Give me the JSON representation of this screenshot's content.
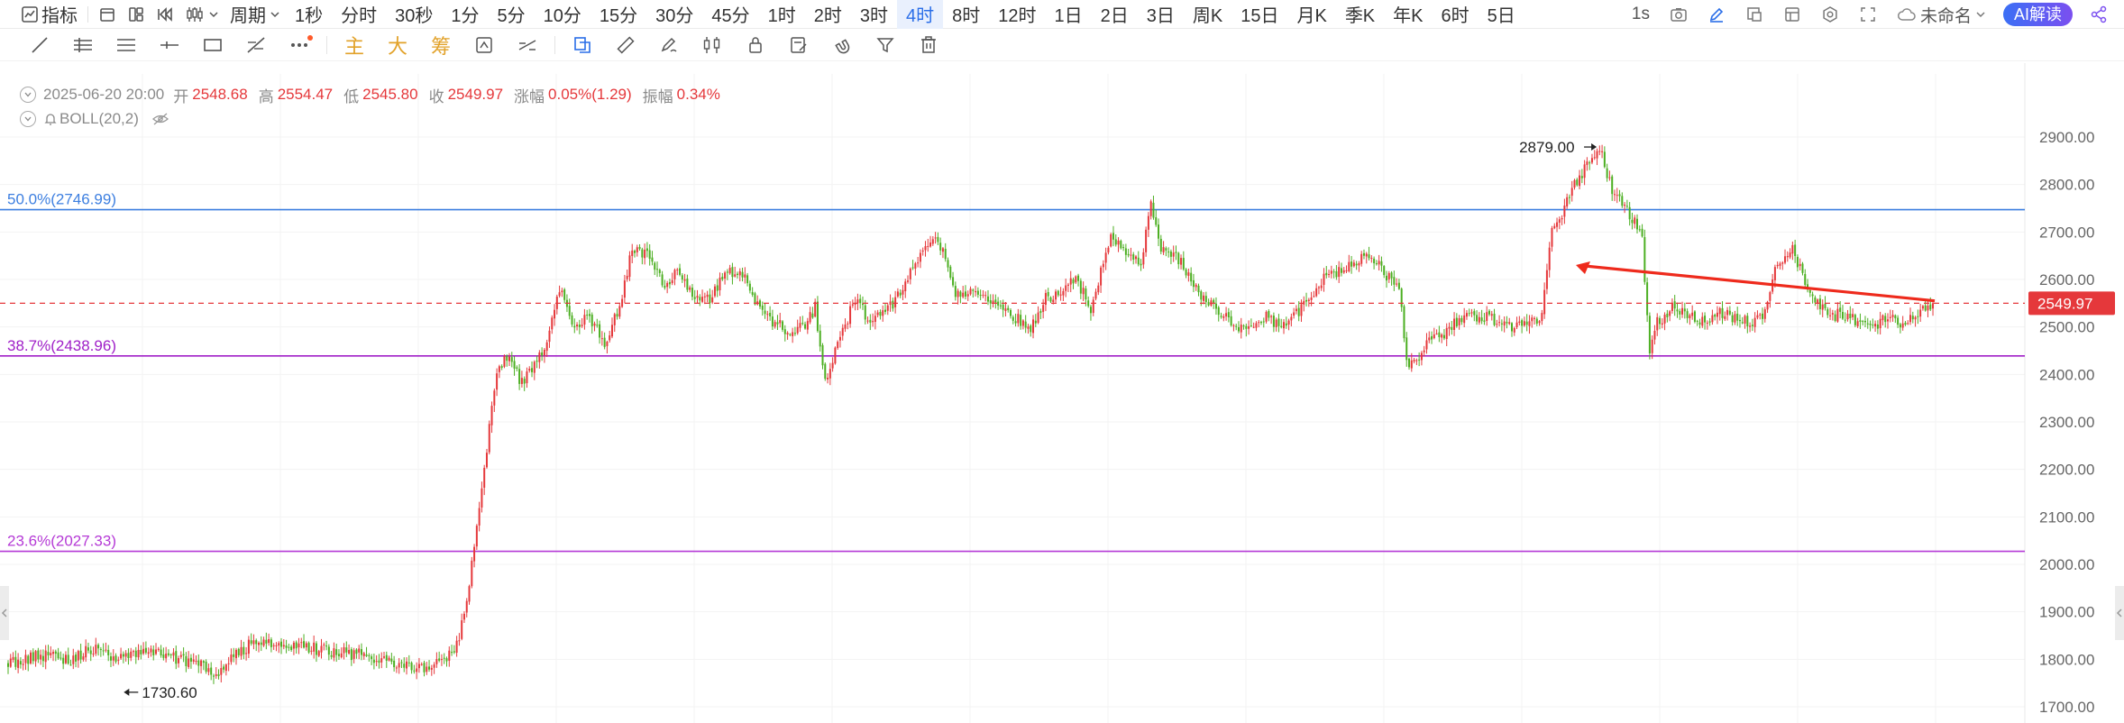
{
  "toolbar": {
    "indicator_label": "指标",
    "period_label": "周期",
    "periods": [
      "1秒",
      "分时",
      "30秒",
      "1分",
      "5分",
      "10分",
      "15分",
      "30分",
      "45分",
      "1时",
      "2时",
      "3时",
      "4时",
      "8时",
      "12时",
      "1日",
      "2日",
      "3日",
      "周K",
      "15日",
      "月K",
      "季K",
      "年K",
      "6时",
      "5日"
    ],
    "active_period": "4时",
    "refresh_label": "1s",
    "layout_name": "未命名",
    "ai_label": "AI解读"
  },
  "drawing_tools": {
    "main_label": "主",
    "big_label": "大",
    "chip_label": "筹"
  },
  "ohlc": {
    "datetime": "2025-06-20 20:00",
    "open_label": "开",
    "open": "2548.68",
    "high_label": "高",
    "high": "2554.47",
    "low_label": "低",
    "low": "2545.80",
    "close_label": "收",
    "close": "2549.97",
    "change_label": "涨幅",
    "change": "0.05%(1.29)",
    "amplitude_label": "振幅",
    "amplitude": "0.34%"
  },
  "indicator": {
    "label": "BOLL(20,2)"
  },
  "colors": {
    "up": "#e5383b",
    "down": "#4caf22",
    "fib50": "#3d7fe0",
    "fib38": "#a020c8",
    "fib23": "#b53ad6",
    "price_line": "#e5383b",
    "accent": "#2a6ee8"
  },
  "chart_data": {
    "type": "candlestick",
    "yaxis_ticks": [
      "2900.00",
      "2800.00",
      "2700.00",
      "2600.00",
      "2500.00",
      "2400.00",
      "2300.00",
      "2200.00",
      "2100.00",
      "2000.00",
      "1900.00",
      "1800.00",
      "1700.00"
    ],
    "ylim": [
      1690,
      2960
    ],
    "current_price": "2549.97",
    "fib_lines": [
      {
        "label": "50.0%(2746.99)",
        "value": 2746.99,
        "color": "#3d7fe0"
      },
      {
        "label": "38.7%(2438.96)",
        "value": 2438.96,
        "color": "#a020c8"
      },
      {
        "label": "23.6%(2027.33)",
        "value": 2027.33,
        "color": "#b53ad6"
      }
    ],
    "high_marker": {
      "label": "2879.00",
      "value": 2879.0
    },
    "low_marker": {
      "label": "1730.60",
      "value": 1730.6
    },
    "anchors": [
      [
        0,
        1790
      ],
      [
        15,
        1810
      ],
      [
        25,
        1800
      ],
      [
        35,
        1825
      ],
      [
        45,
        1800
      ],
      [
        55,
        1815
      ],
      [
        65,
        1805
      ],
      [
        75,
        1790
      ],
      [
        83,
        1770
      ],
      [
        90,
        1810
      ],
      [
        98,
        1835
      ],
      [
        108,
        1835
      ],
      [
        120,
        1825
      ],
      [
        130,
        1815
      ],
      [
        140,
        1810
      ],
      [
        150,
        1800
      ],
      [
        158,
        1790
      ],
      [
        165,
        1780
      ],
      [
        172,
        1800
      ],
      [
        178,
        1810
      ],
      [
        181,
        1870
      ],
      [
        184,
        1960
      ],
      [
        187,
        2080
      ],
      [
        190,
        2200
      ],
      [
        193,
        2330
      ],
      [
        196,
        2420
      ],
      [
        200,
        2440
      ],
      [
        205,
        2380
      ],
      [
        210,
        2420
      ],
      [
        214,
        2460
      ],
      [
        220,
        2580
      ],
      [
        226,
        2500
      ],
      [
        232,
        2520
      ],
      [
        238,
        2470
      ],
      [
        244,
        2540
      ],
      [
        249,
        2670
      ],
      [
        255,
        2650
      ],
      [
        262,
        2590
      ],
      [
        268,
        2620
      ],
      [
        274,
        2555
      ],
      [
        280,
        2560
      ],
      [
        287,
        2620
      ],
      [
        294,
        2600
      ],
      [
        300,
        2530
      ],
      [
        306,
        2510
      ],
      [
        312,
        2490
      ],
      [
        318,
        2500
      ],
      [
        322,
        2540
      ],
      [
        326,
        2390
      ],
      [
        332,
        2480
      ],
      [
        338,
        2560
      ],
      [
        344,
        2510
      ],
      [
        350,
        2530
      ],
      [
        356,
        2570
      ],
      [
        362,
        2630
      ],
      [
        368,
        2690
      ],
      [
        373,
        2670
      ],
      [
        378,
        2570
      ],
      [
        384,
        2570
      ],
      [
        390,
        2560
      ],
      [
        396,
        2545
      ],
      [
        402,
        2520
      ],
      [
        408,
        2500
      ],
      [
        414,
        2560
      ],
      [
        420,
        2570
      ],
      [
        426,
        2600
      ],
      [
        432,
        2540
      ],
      [
        440,
        2690
      ],
      [
        446,
        2660
      ],
      [
        452,
        2640
      ],
      [
        456,
        2760
      ],
      [
        460,
        2660
      ],
      [
        466,
        2650
      ],
      [
        472,
        2600
      ],
      [
        478,
        2550
      ],
      [
        484,
        2530
      ],
      [
        490,
        2500
      ],
      [
        496,
        2510
      ],
      [
        502,
        2520
      ],
      [
        508,
        2500
      ],
      [
        514,
        2530
      ],
      [
        520,
        2560
      ],
      [
        526,
        2610
      ],
      [
        532,
        2620
      ],
      [
        538,
        2640
      ],
      [
        544,
        2650
      ],
      [
        550,
        2610
      ],
      [
        555,
        2580
      ],
      [
        558,
        2430
      ],
      [
        562,
        2420
      ],
      [
        566,
        2470
      ],
      [
        572,
        2480
      ],
      [
        578,
        2510
      ],
      [
        584,
        2520
      ],
      [
        590,
        2520
      ],
      [
        596,
        2510
      ],
      [
        602,
        2500
      ],
      [
        608,
        2520
      ],
      [
        612,
        2520
      ],
      [
        616,
        2700
      ],
      [
        620,
        2740
      ],
      [
        624,
        2800
      ],
      [
        628,
        2820
      ],
      [
        632,
        2860
      ],
      [
        636,
        2860
      ],
      [
        640,
        2790
      ],
      [
        644,
        2760
      ],
      [
        648,
        2730
      ],
      [
        652,
        2680
      ],
      [
        655,
        2440
      ],
      [
        658,
        2510
      ],
      [
        664,
        2540
      ],
      [
        670,
        2530
      ],
      [
        676,
        2510
      ],
      [
        682,
        2530
      ],
      [
        688,
        2520
      ],
      [
        694,
        2510
      ],
      [
        700,
        2520
      ],
      [
        706,
        2640
      ],
      [
        712,
        2660
      ],
      [
        716,
        2610
      ],
      [
        720,
        2570
      ],
      [
        726,
        2520
      ],
      [
        732,
        2530
      ],
      [
        738,
        2510
      ],
      [
        744,
        2500
      ],
      [
        750,
        2520
      ],
      [
        756,
        2510
      ],
      [
        762,
        2530
      ],
      [
        766,
        2540
      ],
      [
        768,
        2552
      ]
    ]
  }
}
